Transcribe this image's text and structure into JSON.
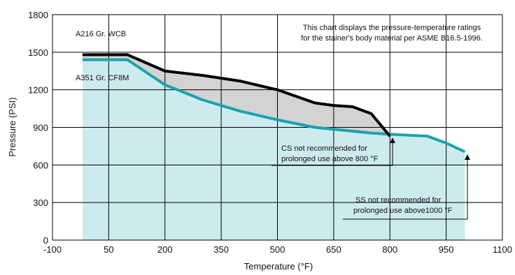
{
  "chart_data": {
    "type": "line",
    "xlabel": "Temperature (°F)",
    "ylabel": "Pressure (PSI)",
    "xlim": [
      -100,
      1100
    ],
    "ylim": [
      0,
      1800
    ],
    "x_ticks": [
      -100,
      50,
      200,
      350,
      500,
      650,
      800,
      950,
      1100
    ],
    "y_ticks": [
      0,
      300,
      600,
      900,
      1200,
      1500,
      1800
    ],
    "grid": true,
    "colors": {
      "wcb_line": "#000000",
      "cf8m_line": "#1aa3ad",
      "cf8m_fill": "#cdebee",
      "gap_fill": "#d3d3d3"
    },
    "series": [
      {
        "name": "A216 Gr. WCB",
        "x": [
          -20,
          100,
          200,
          300,
          400,
          500,
          600,
          650,
          700,
          750,
          800
        ],
        "y": [
          1480,
          1480,
          1350,
          1315,
          1270,
          1200,
          1095,
          1075,
          1065,
          1010,
          830
        ]
      },
      {
        "name": "A351 Gr. CF8M",
        "x": [
          -20,
          100,
          200,
          300,
          400,
          500,
          600,
          700,
          750,
          800,
          900,
          950,
          1000
        ],
        "y": [
          1440,
          1440,
          1240,
          1120,
          1030,
          960,
          900,
          870,
          855,
          845,
          830,
          775,
          705
        ]
      }
    ],
    "annotations": {
      "note_line1": "This chart displays the pressure-temperature ratings",
      "note_line2": "for the stainer's body material per  ASME B16.5-1996.",
      "cs_line1": "CS not recommended for",
      "cs_line2": "prolonged use above 800 °F",
      "ss_line1": "SS not recommended for",
      "ss_line2": "prolonged use above1000 °F"
    }
  }
}
